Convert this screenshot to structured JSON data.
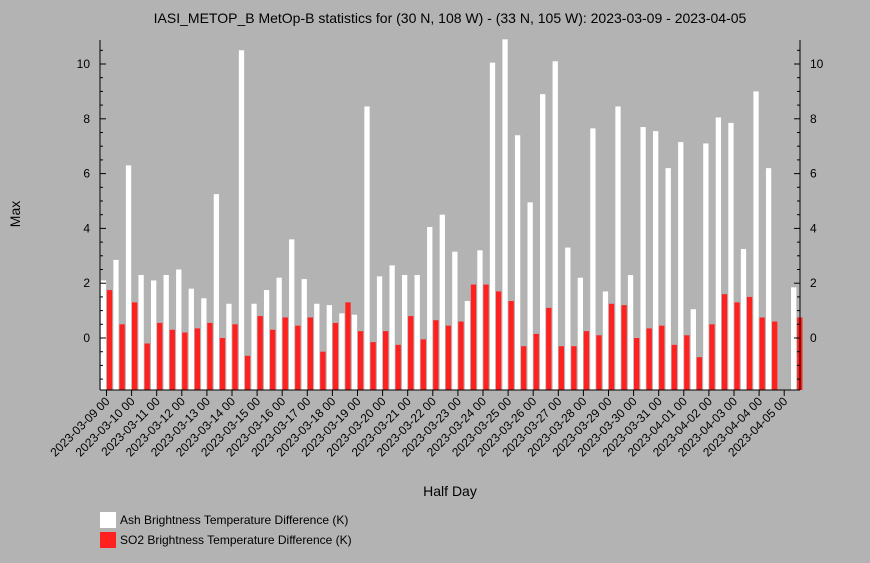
{
  "chart_data": {
    "type": "bar",
    "title": "IASI_METOP_B MetOp-B statistics for (30 N, 108 W) - (33 N, 105 W): 2023-03-09 - 2023-04-05",
    "xlabel": "Half Day",
    "ylabel": "Max",
    "ylim": [
      -1.9,
      10.9
    ],
    "yticks": [
      0,
      2,
      4,
      6,
      8,
      10
    ],
    "grid": false,
    "legend_position": "bottom-left",
    "categories": [
      "2023-03-09 00",
      "2023-03-09 12",
      "2023-03-10 00",
      "2023-03-10 12",
      "2023-03-11 00",
      "2023-03-11 12",
      "2023-03-12 00",
      "2023-03-12 12",
      "2023-03-13 00",
      "2023-03-13 12",
      "2023-03-14 00",
      "2023-03-14 12",
      "2023-03-15 00",
      "2023-03-15 12",
      "2023-03-16 00",
      "2023-03-16 12",
      "2023-03-17 00",
      "2023-03-17 12",
      "2023-03-18 00",
      "2023-03-18 12",
      "2023-03-19 00",
      "2023-03-19 12",
      "2023-03-20 00",
      "2023-03-20 12",
      "2023-03-21 00",
      "2023-03-21 12",
      "2023-03-22 00",
      "2023-03-22 12",
      "2023-03-23 00",
      "2023-03-23 12",
      "2023-03-24 00",
      "2023-03-24 12",
      "2023-03-25 00",
      "2023-03-25 12",
      "2023-03-26 00",
      "2023-03-26 12",
      "2023-03-27 00",
      "2023-03-27 12",
      "2023-03-28 00",
      "2023-03-28 12",
      "2023-03-29 00",
      "2023-03-29 12",
      "2023-03-30 00",
      "2023-03-30 12",
      "2023-03-31 00",
      "2023-03-31 12",
      "2023-04-01 00",
      "2023-04-01 12",
      "2023-04-02 00",
      "2023-04-02 12",
      "2023-04-03 00",
      "2023-04-03 12",
      "2023-04-04 00",
      "2023-04-04 12",
      "2023-04-05 00",
      "2023-04-05 12"
    ],
    "tick_labels": [
      "2023-03-09 00",
      "2023-03-10 00",
      "2023-03-11 00",
      "2023-03-12 00",
      "2023-03-13 00",
      "2023-03-14 00",
      "2023-03-15 00",
      "2023-03-16 00",
      "2023-03-17 00",
      "2023-03-18 00",
      "2023-03-19 00",
      "2023-03-20 00",
      "2023-03-21 00",
      "2023-03-22 00",
      "2023-03-23 00",
      "2023-03-24 00",
      "2023-03-25 00",
      "2023-03-26 00",
      "2023-03-27 00",
      "2023-03-28 00",
      "2023-03-29 00",
      "2023-03-30 00",
      "2023-03-31 00",
      "2023-04-01 00",
      "2023-04-02 00",
      "2023-04-03 00",
      "2023-04-04 00",
      "2023-04-05 00"
    ],
    "series": [
      {
        "name": "Ash Brightness Temperature Difference (K)",
        "color": "#ffffff",
        "values": [
          2.1,
          2.85,
          6.3,
          2.3,
          2.1,
          2.3,
          2.5,
          1.8,
          1.45,
          5.25,
          1.25,
          10.5,
          1.25,
          1.75,
          2.2,
          3.6,
          2.15,
          1.25,
          1.2,
          0.9,
          0.85,
          8.45,
          2.25,
          2.65,
          2.3,
          2.3,
          4.05,
          4.5,
          3.15,
          1.35,
          3.2,
          10.05,
          10.9,
          7.4,
          4.95,
          8.9,
          10.1,
          3.3,
          2.2,
          7.65,
          1.7,
          8.45,
          2.3,
          7.7,
          7.55,
          6.2,
          7.15,
          1.05,
          7.1,
          8.05,
          7.85,
          3.25,
          9.0,
          6.2,
          null,
          1.85
        ]
      },
      {
        "name": "SO2 Brightness Temperature Difference (K)",
        "color": "#ff2020",
        "values": [
          1.75,
          0.5,
          1.3,
          -0.2,
          0.55,
          0.3,
          0.2,
          0.35,
          0.55,
          0.0,
          0.5,
          -0.65,
          0.8,
          0.3,
          0.75,
          0.45,
          0.75,
          -0.5,
          0.55,
          1.3,
          0.25,
          -0.15,
          0.25,
          -0.25,
          0.8,
          -0.05,
          0.65,
          0.45,
          0.6,
          1.95,
          1.95,
          1.7,
          1.35,
          -0.3,
          0.15,
          1.1,
          -0.3,
          -0.3,
          0.25,
          0.1,
          1.25,
          1.2,
          0.0,
          0.35,
          0.45,
          -0.25,
          0.1,
          -0.7,
          0.5,
          1.6,
          1.3,
          1.5,
          0.75,
          0.6,
          null,
          0.75
        ]
      }
    ]
  }
}
